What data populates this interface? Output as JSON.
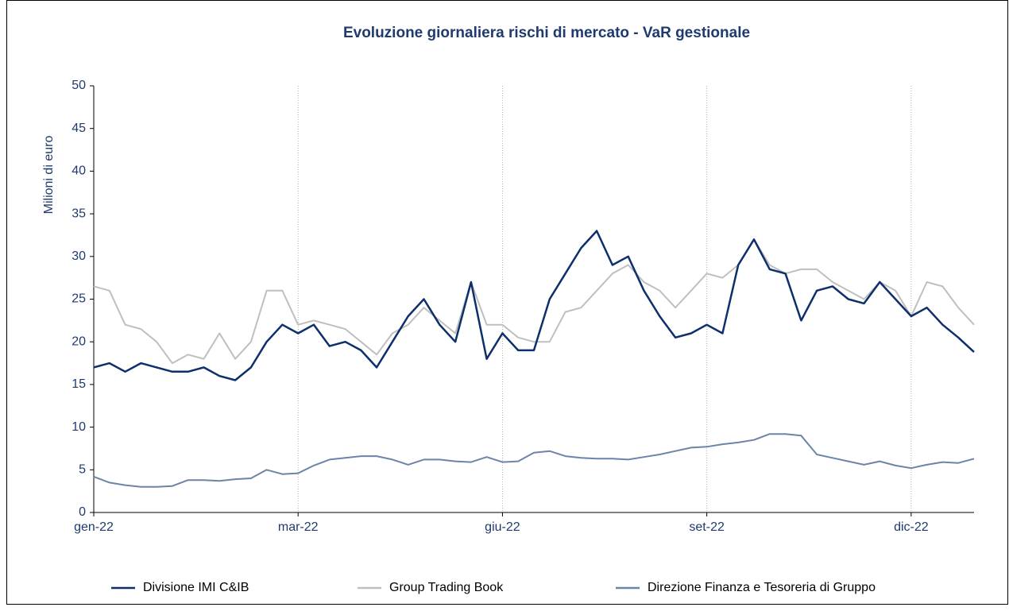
{
  "chart_data": {
    "type": "line",
    "title": "Evoluzione giornaliera rischi di mercato - VaR gestionale",
    "y_label": "Milioni di euro",
    "categories": [
      "gen-22",
      null,
      null,
      null,
      null,
      null,
      null,
      null,
      null,
      null,
      null,
      null,
      null,
      "mar-22",
      null,
      null,
      null,
      null,
      null,
      null,
      null,
      null,
      null,
      null,
      null,
      null,
      "giu-22",
      null,
      null,
      null,
      null,
      null,
      null,
      null,
      null,
      null,
      null,
      null,
      null,
      "set-22",
      null,
      null,
      null,
      null,
      null,
      null,
      null,
      null,
      null,
      null,
      null,
      null,
      "dic-22",
      null,
      null,
      null,
      null
    ],
    "series": [
      {
        "name": "Divisione IMI C&IB",
        "color": "#0d2f6b",
        "values": [
          17,
          17.5,
          16.5,
          17.5,
          17,
          16.5,
          16.5,
          17,
          16,
          15.5,
          17,
          20,
          22,
          21,
          22,
          19.5,
          20,
          19,
          17,
          20,
          23,
          25,
          22,
          20,
          27,
          18,
          21,
          19,
          19,
          25,
          28,
          31,
          33,
          29,
          30,
          26,
          23,
          20.5,
          21,
          22,
          21,
          29,
          32,
          28.5,
          28,
          22.5,
          26,
          26.5,
          25,
          24.5,
          27,
          25,
          23,
          24,
          22,
          20.5,
          18.8
        ]
      },
      {
        "name": "Group Trading Book",
        "color": "#bfbfbf",
        "values": [
          26.5,
          26,
          22,
          21.5,
          20,
          17.5,
          18.5,
          18,
          21,
          18,
          20,
          26,
          26,
          22,
          22.5,
          22,
          21.5,
          20,
          18.5,
          21,
          22,
          24,
          22.5,
          21,
          27,
          22,
          22,
          20.5,
          20,
          20,
          23.5,
          24,
          26,
          28,
          29,
          27,
          26,
          24,
          26,
          28,
          27.5,
          29,
          32,
          29,
          28,
          28.5,
          28.5,
          27,
          26,
          25,
          27,
          26,
          23,
          27,
          26.5,
          24,
          22
        ]
      },
      {
        "name": "Direzione Finanza e Tesoreria di Gruppo",
        "color": "#6b84a8",
        "values": [
          4.2,
          3.5,
          3.2,
          3.0,
          3.0,
          3.1,
          3.8,
          3.8,
          3.7,
          3.9,
          4.0,
          5.0,
          4.5,
          4.6,
          5.5,
          6.2,
          6.4,
          6.6,
          6.6,
          6.2,
          5.6,
          6.2,
          6.2,
          6.0,
          5.9,
          6.5,
          5.9,
          6.0,
          7.0,
          7.2,
          6.6,
          6.4,
          6.3,
          6.3,
          6.2,
          6.5,
          6.8,
          7.2,
          7.6,
          7.7,
          8.0,
          8.2,
          8.5,
          9.2,
          9.2,
          9.0,
          6.8,
          6.4,
          6.0,
          5.6,
          6.0,
          5.5,
          5.2,
          5.6,
          5.9,
          5.8,
          6.3
        ]
      }
    ],
    "ylim": [
      0,
      50
    ],
    "yticks": [
      0,
      5,
      10,
      15,
      20,
      25,
      30,
      35,
      40,
      45,
      50
    ],
    "grid": "x",
    "legend": "bottom"
  }
}
